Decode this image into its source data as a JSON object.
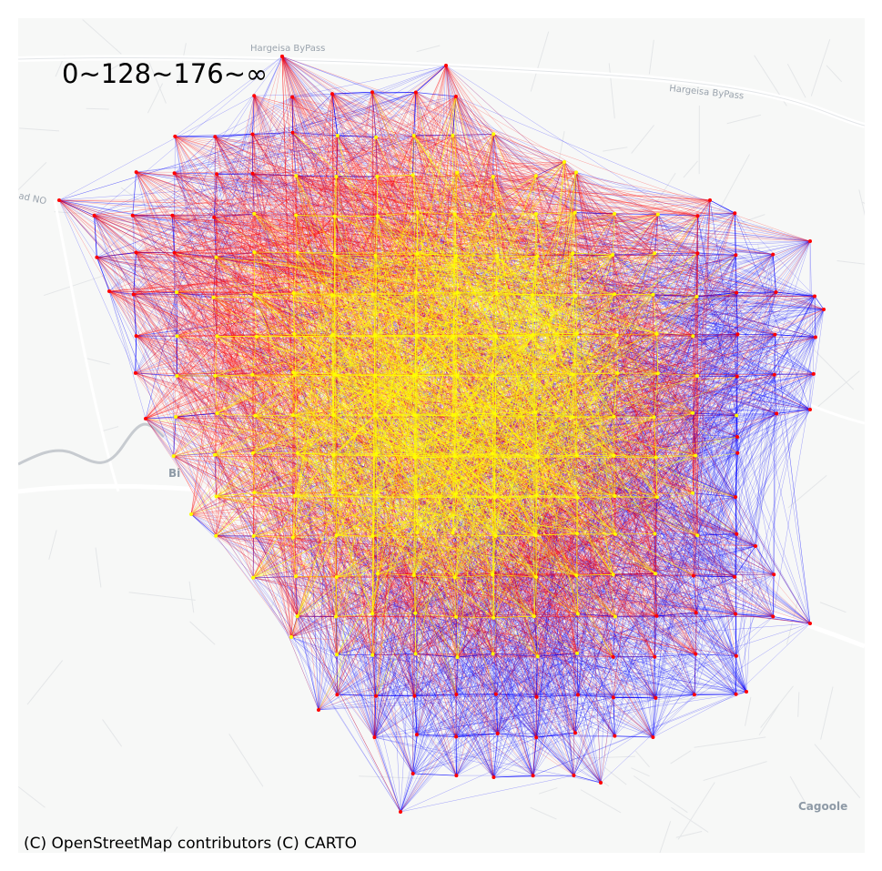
{
  "map": {
    "legend_title": "0~128~176~∞",
    "attribution": "(C) OpenStreetMap contributors (C) CARTO",
    "labels": {
      "bypass_top": "Hargeisa ByPass",
      "bypass_right": "Hargeisa ByPass",
      "road_left": "ad NO",
      "place": "Cagoole",
      "district_left": "Bi"
    },
    "colors": {
      "low": "#0000ff",
      "mid": "#ff0000",
      "high": "#ffff00",
      "basemap": "#f7f8f7",
      "road": "#ffffff",
      "minor_road": "#e4e6e8",
      "river": "#c7cbd0"
    }
  }
}
